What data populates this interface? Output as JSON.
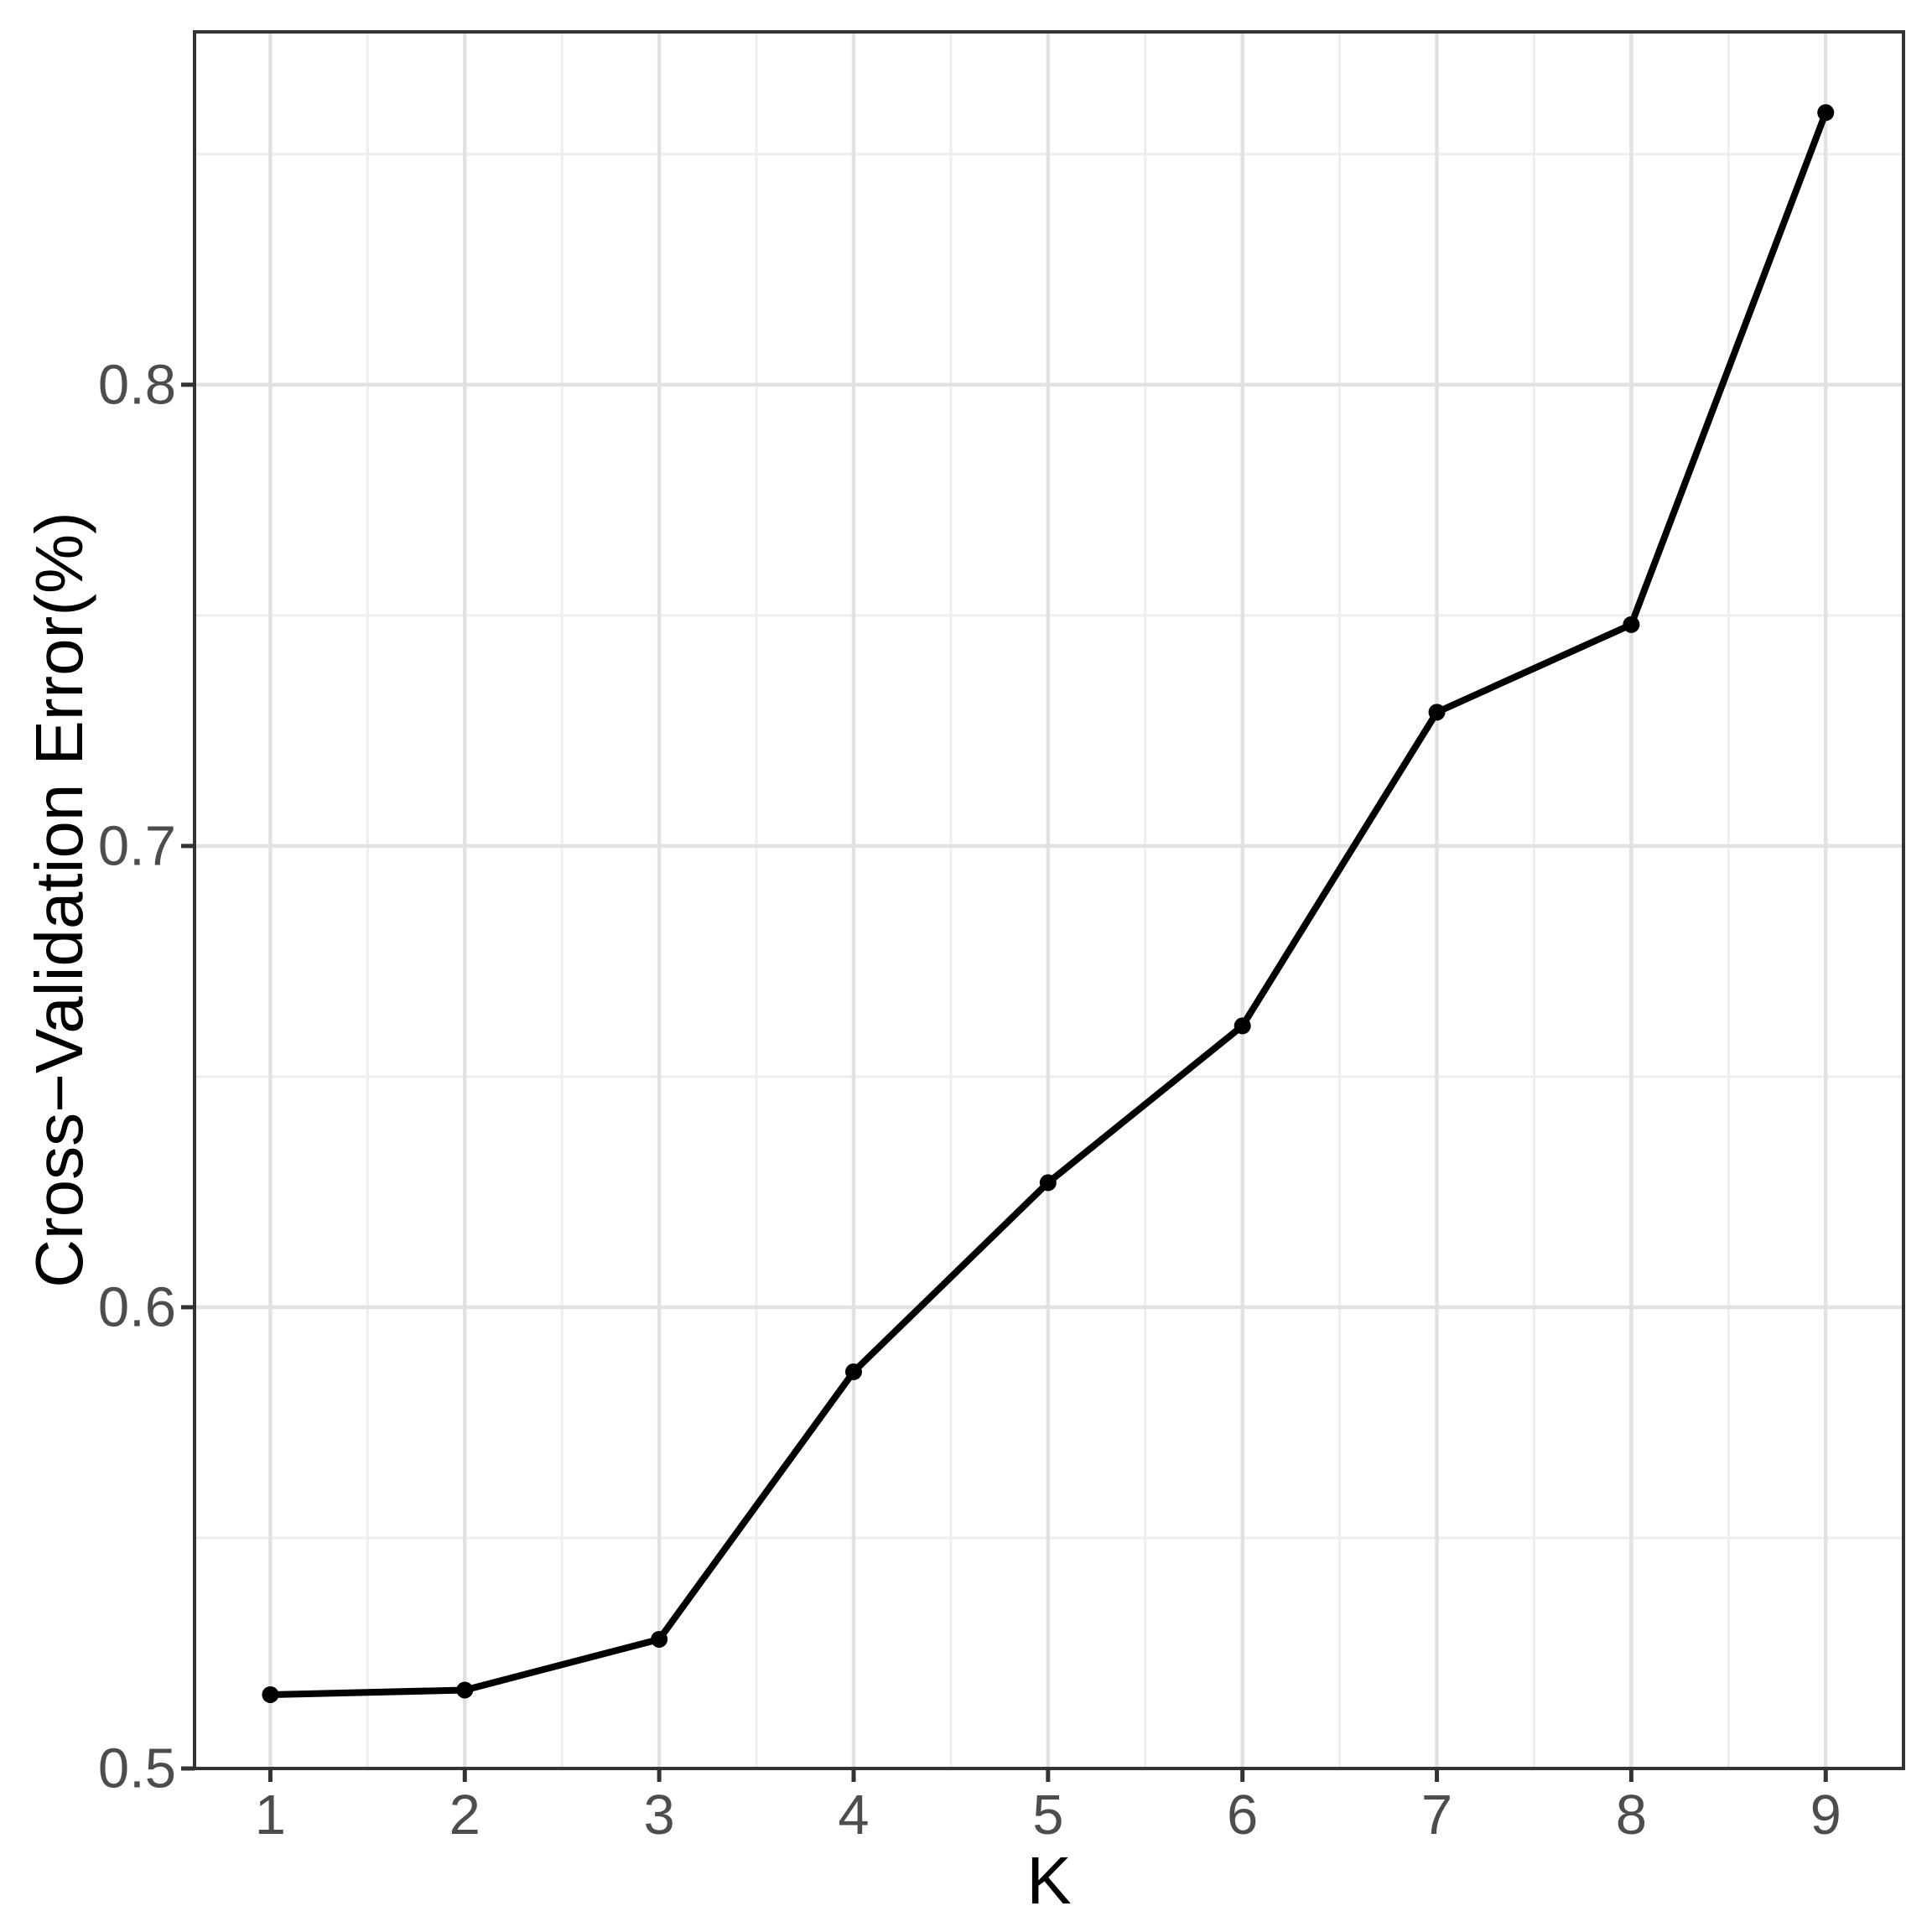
{
  "chart_data": {
    "type": "line",
    "title": "",
    "xlabel": "K",
    "ylabel": "Cross−Validation Error(%)",
    "x": [
      1,
      2,
      3,
      4,
      5,
      6,
      7,
      8,
      9
    ],
    "series": [
      {
        "name": "cross-validation-error",
        "values": [
          0.516,
          0.517,
          0.528,
          0.586,
          0.627,
          0.661,
          0.729,
          0.748,
          0.859
        ]
      }
    ],
    "x_ticks": {
      "values": [
        1,
        2,
        3,
        4,
        5,
        6,
        7,
        8,
        9
      ],
      "labels": [
        "1",
        "2",
        "3",
        "4",
        "5",
        "6",
        "7",
        "8",
        "9"
      ]
    },
    "y_ticks": {
      "values": [
        0.5,
        0.6,
        0.7,
        0.8
      ],
      "labels": [
        "0.5",
        "0.6",
        "0.7",
        "0.8"
      ]
    },
    "x_minor": [
      1.5,
      2.5,
      3.5,
      4.5,
      5.5,
      6.5,
      7.5,
      8.5
    ],
    "y_minor": [
      0.55,
      0.65,
      0.75,
      0.85
    ],
    "xlim": [
      0.61,
      9.4
    ],
    "ylim": [
      0.5,
      0.8765
    ],
    "grid": "major and minor gridlines, light gray on white panel",
    "legend": "none",
    "marker": "filled-circle",
    "colors": {
      "line": "#000000",
      "point": "#000000",
      "grid_major": "#e2e2e2",
      "grid_minor": "#eeeeee",
      "panel_border": "#333333",
      "tick_mark": "#333333",
      "tick_label": "#4d4d4d",
      "axis_title": "#000000",
      "background": "#ffffff"
    }
  }
}
